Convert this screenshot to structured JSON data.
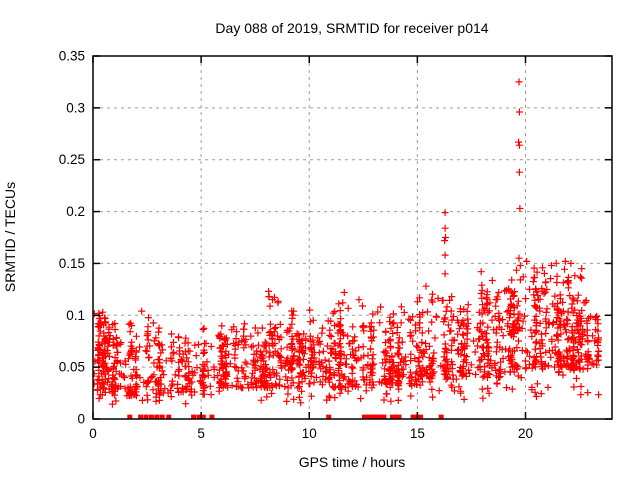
{
  "window": {
    "background": "#ffffff",
    "text_color": "#000000"
  },
  "chart_data": {
    "type": "scatter",
    "title": "Day 088 of 2019, SRMTID for receiver p014",
    "xlabel": "GPS time / hours",
    "ylabel": "SRMTID / TECUs",
    "xlim": [
      0,
      24
    ],
    "ylim": [
      0,
      0.35
    ],
    "xticks": [
      {
        "value": 0,
        "label": "0"
      },
      {
        "value": 5,
        "label": "5"
      },
      {
        "value": 10,
        "label": "10"
      },
      {
        "value": 15,
        "label": "15"
      },
      {
        "value": 20,
        "label": "20"
      }
    ],
    "yticks": [
      {
        "value": 0,
        "label": "0"
      },
      {
        "value": 0.05,
        "label": "0.05"
      },
      {
        "value": 0.1,
        "label": "0.1"
      },
      {
        "value": 0.15,
        "label": "0.15"
      },
      {
        "value": 0.2,
        "label": "0.2"
      },
      {
        "value": 0.25,
        "label": "0.25"
      },
      {
        "value": 0.3,
        "label": "0.3"
      },
      {
        "value": 0.35,
        "label": "0.35"
      }
    ],
    "grid": {
      "visible": true,
      "color": "#9c9c9c",
      "dash": "3,4"
    },
    "border_color": "#000000",
    "marker": {
      "shape": "plus",
      "color": "#ff0000",
      "size": 7
    },
    "series_name": "SRMTID",
    "outlier_points": [
      [
        19.7,
        0.325
      ],
      [
        19.72,
        0.296
      ],
      [
        19.68,
        0.267
      ],
      [
        19.72,
        0.264
      ],
      [
        19.72,
        0.238
      ],
      [
        19.74,
        0.203
      ],
      [
        19.7,
        0.155
      ],
      [
        19.76,
        0.148
      ],
      [
        16.28,
        0.199
      ],
      [
        16.28,
        0.184
      ],
      [
        16.3,
        0.175
      ],
      [
        16.26,
        0.172
      ],
      [
        16.28,
        0.158
      ],
      [
        16.28,
        0.14
      ],
      [
        17.95,
        0.142
      ],
      [
        17.98,
        0.129
      ],
      [
        17.95,
        0.121
      ],
      [
        8.12,
        0.123
      ],
      [
        8.3,
        0.115
      ],
      [
        8.55,
        0.112
      ],
      [
        11.62,
        0.122
      ],
      [
        11.55,
        0.112
      ],
      [
        12.3,
        0.115
      ],
      [
        13.3,
        0.108
      ],
      [
        15.0,
        0.113
      ],
      [
        15.4,
        0.128
      ],
      [
        20.05,
        0.152
      ],
      [
        21.2,
        0.148
      ],
      [
        21.85,
        0.152
      ],
      [
        22.1,
        0.15
      ],
      [
        22.6,
        0.145
      ],
      [
        0.45,
        0.103
      ],
      [
        2.25,
        0.104
      ],
      [
        10.02,
        0.105
      ]
    ],
    "zero_value_times": [
      1.7,
      2.2,
      2.45,
      2.7,
      2.95,
      3.2,
      3.5,
      4.65,
      4.9,
      5.1,
      5.5,
      10.9,
      12.55,
      12.7,
      12.85,
      13.0,
      13.15,
      13.3,
      13.45,
      13.85,
      14.0,
      14.15,
      14.8,
      14.95,
      15.15,
      16.1
    ],
    "band_profile": {
      "description": "dense per-epoch SRMTID cloud; per-hour ranges [xStart,xEnd,count,yLow,yHigh,columnPeakMax] read from the plot",
      "seed": 88,
      "bins": [
        [
          0.0,
          0.7,
          90,
          0.03,
          0.095,
          0.105
        ],
        [
          0.7,
          1.5,
          70,
          0.028,
          0.085,
          0.1
        ],
        [
          1.5,
          2.3,
          55,
          0.022,
          0.075,
          0.105
        ],
        [
          2.3,
          3.2,
          60,
          0.022,
          0.08,
          0.1
        ],
        [
          3.2,
          4.2,
          45,
          0.025,
          0.07,
          0.095
        ],
        [
          4.2,
          5.0,
          40,
          0.028,
          0.065,
          0.08
        ],
        [
          5.0,
          6.0,
          65,
          0.03,
          0.072,
          0.09
        ],
        [
          6.0,
          7.0,
          70,
          0.03,
          0.078,
          0.095
        ],
        [
          7.0,
          8.0,
          75,
          0.03,
          0.075,
          0.09
        ],
        [
          8.0,
          9.0,
          80,
          0.03,
          0.085,
          0.12
        ],
        [
          9.0,
          10.0,
          80,
          0.03,
          0.082,
          0.105
        ],
        [
          10.0,
          11.0,
          75,
          0.032,
          0.078,
          0.1
        ],
        [
          11.0,
          12.0,
          75,
          0.03,
          0.085,
          0.118
        ],
        [
          12.0,
          13.0,
          70,
          0.03,
          0.088,
          0.112
        ],
        [
          13.0,
          14.0,
          65,
          0.03,
          0.092,
          0.108
        ],
        [
          14.0,
          15.0,
          70,
          0.032,
          0.095,
          0.11
        ],
        [
          15.0,
          16.0,
          70,
          0.035,
          0.1,
          0.128
        ],
        [
          16.0,
          17.0,
          70,
          0.038,
          0.1,
          0.125
        ],
        [
          17.0,
          18.0,
          75,
          0.04,
          0.11,
          0.14
        ],
        [
          18.0,
          19.0,
          80,
          0.04,
          0.115,
          0.135
        ],
        [
          19.0,
          20.0,
          90,
          0.045,
          0.125,
          0.152
        ],
        [
          20.0,
          21.0,
          90,
          0.048,
          0.125,
          0.15
        ],
        [
          21.0,
          22.0,
          95,
          0.05,
          0.13,
          0.152
        ],
        [
          22.0,
          23.0,
          110,
          0.048,
          0.115,
          0.145
        ],
        [
          23.0,
          23.35,
          25,
          0.045,
          0.095,
          0.1
        ]
      ]
    }
  }
}
